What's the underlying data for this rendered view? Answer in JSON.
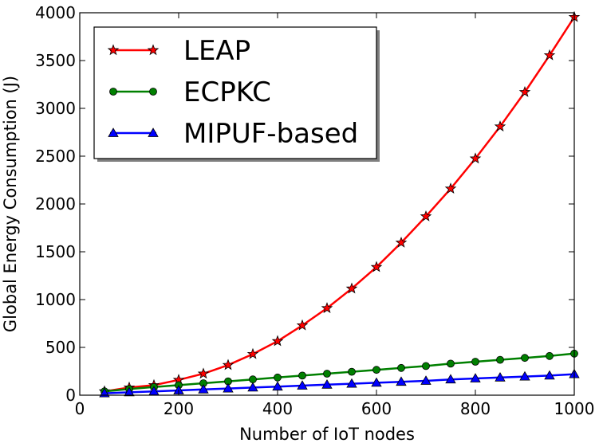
{
  "chart_data": {
    "type": "line",
    "title": "",
    "xlabel": "Number of IoT nodes",
    "ylabel": "Global Energy Consumption (J)",
    "xlim": [
      0,
      1000
    ],
    "ylim": [
      0,
      4000
    ],
    "x_ticks": [
      "0",
      "200",
      "400",
      "600",
      "800",
      "1000"
    ],
    "y_ticks": [
      "0",
      "500",
      "1000",
      "1500",
      "2000",
      "2500",
      "3000",
      "3500",
      "4000"
    ],
    "grid": false,
    "legend_position": "top-left",
    "x": [
      50,
      100,
      150,
      200,
      250,
      300,
      350,
      400,
      450,
      500,
      550,
      600,
      650,
      700,
      750,
      800,
      850,
      900,
      950,
      1000
    ],
    "series": [
      {
        "name": "LEAP",
        "color": "#ff0000",
        "marker": "star",
        "values": [
          40,
          80,
          105,
          160,
          225,
          315,
          430,
          565,
          730,
          910,
          1115,
          1340,
          1595,
          1870,
          2160,
          2475,
          2810,
          3170,
          3555,
          3955
        ]
      },
      {
        "name": "ECPKC",
        "color": "#008000",
        "marker": "circle",
        "values": [
          40,
          65,
          85,
          105,
          125,
          145,
          165,
          185,
          205,
          225,
          245,
          265,
          285,
          305,
          330,
          350,
          370,
          390,
          410,
          435
        ]
      },
      {
        "name": "MIPUF-based",
        "color": "#0000ff",
        "marker": "triangle",
        "values": [
          20,
          30,
          40,
          50,
          60,
          70,
          80,
          90,
          100,
          110,
          120,
          130,
          140,
          150,
          165,
          175,
          185,
          195,
          205,
          220
        ]
      }
    ]
  }
}
